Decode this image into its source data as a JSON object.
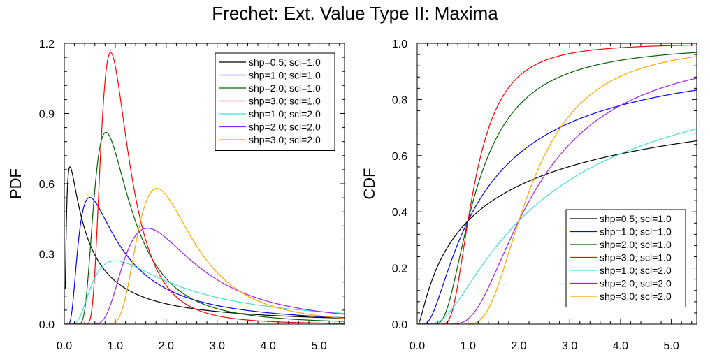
{
  "title": "Frechet: Ext. Value Type II: Maxima",
  "chart_data": [
    {
      "type": "line",
      "function": "pdf",
      "ylabel": "PDF",
      "xlabel": "",
      "xlim": [
        0.0,
        5.5
      ],
      "ylim": [
        0.0,
        1.2
      ],
      "xticks": [
        "0.0",
        "1.0",
        "2.0",
        "3.0",
        "4.0",
        "5.0"
      ],
      "yticks": [
        "0.0",
        "0.3",
        "0.6",
        "0.9",
        "1.2"
      ],
      "legend_position": "top-right",
      "series": [
        {
          "name": "shp=0.5; scl=1.0",
          "shape": 0.5,
          "scale": 1.0,
          "color": "#000000"
        },
        {
          "name": "shp=1.0; scl=1.0",
          "shape": 1.0,
          "scale": 1.0,
          "color": "#0000ff"
        },
        {
          "name": "shp=2.0; scl=1.0",
          "shape": 2.0,
          "scale": 1.0,
          "color": "#006400"
        },
        {
          "name": "shp=3.0; scl=1.0",
          "shape": 3.0,
          "scale": 1.0,
          "color": "#ff0000"
        },
        {
          "name": "shp=1.0; scl=2.0",
          "shape": 1.0,
          "scale": 2.0,
          "color": "#40e0d0"
        },
        {
          "name": "shp=2.0; scl=2.0",
          "shape": 2.0,
          "scale": 2.0,
          "color": "#a020f0"
        },
        {
          "name": "shp=3.0; scl=2.0",
          "shape": 3.0,
          "scale": 2.0,
          "color": "#ffa500"
        }
      ]
    },
    {
      "type": "line",
      "function": "cdf",
      "ylabel": "CDF",
      "xlabel": "",
      "xlim": [
        0.0,
        5.5
      ],
      "ylim": [
        0.0,
        1.0
      ],
      "xticks": [
        "0.0",
        "1.0",
        "2.0",
        "3.0",
        "4.0",
        "5.0"
      ],
      "yticks": [
        "0.0",
        "0.2",
        "0.4",
        "0.6",
        "0.8",
        "1.0"
      ],
      "legend_position": "bottom-right",
      "series": [
        {
          "name": "shp=0.5; scl=1.0",
          "shape": 0.5,
          "scale": 1.0,
          "color": "#000000"
        },
        {
          "name": "shp=1.0; scl=1.0",
          "shape": 1.0,
          "scale": 1.0,
          "color": "#0000ff"
        },
        {
          "name": "shp=2.0; scl=1.0",
          "shape": 2.0,
          "scale": 1.0,
          "color": "#006400"
        },
        {
          "name": "shp=3.0; scl=1.0",
          "shape": 3.0,
          "scale": 1.0,
          "color": "#ff0000"
        },
        {
          "name": "shp=1.0; scl=2.0",
          "shape": 1.0,
          "scale": 2.0,
          "color": "#40e0d0"
        },
        {
          "name": "shp=2.0; scl=2.0",
          "shape": 2.0,
          "scale": 2.0,
          "color": "#a020f0"
        },
        {
          "name": "shp=3.0; scl=2.0",
          "shape": 3.0,
          "scale": 2.0,
          "color": "#ffa500"
        }
      ]
    }
  ]
}
